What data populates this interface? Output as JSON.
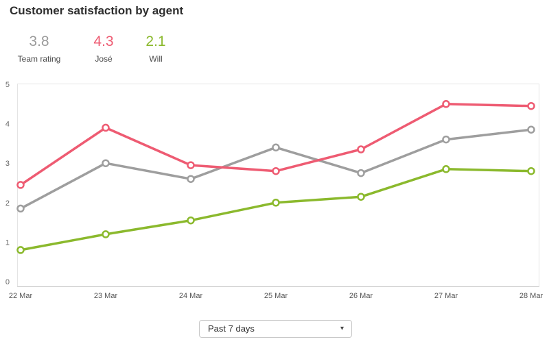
{
  "header": {
    "title": "Customer satisfaction by agent"
  },
  "stats": [
    {
      "value": "3.8",
      "label": "Team rating",
      "color": "#9b9b9b"
    },
    {
      "value": "4.3",
      "label": "José",
      "color": "#ee5b72"
    },
    {
      "value": "2.1",
      "label": "Will",
      "color": "#8bb92d"
    }
  ],
  "filter": {
    "selected": "Past 7 days",
    "caret_icon": "▾"
  },
  "chart_data": {
    "type": "line",
    "title": "Customer satisfaction by agent",
    "categories": [
      "22 Mar",
      "23 Mar",
      "24 Mar",
      "25 Mar",
      "26 Mar",
      "27 Mar",
      "28 Mar"
    ],
    "series": [
      {
        "name": "Team rating",
        "color": "#9e9e9e",
        "values": [
          1.85,
          3.0,
          2.6,
          3.4,
          2.75,
          3.6,
          3.85
        ]
      },
      {
        "name": "Will",
        "color": "#8bb92d",
        "values": [
          0.8,
          1.2,
          1.55,
          2.0,
          2.15,
          2.85,
          2.8
        ]
      },
      {
        "name": "José",
        "color": "#ee5b72",
        "values": [
          2.45,
          3.9,
          2.95,
          2.8,
          3.35,
          4.5,
          4.45
        ]
      }
    ],
    "xlabel": "",
    "ylabel": "",
    "ylim": [
      0,
      5
    ],
    "yticks": [
      0,
      1,
      2,
      3,
      4,
      5
    ],
    "grid": false,
    "legend": "none",
    "marker": "open-circle",
    "axis_colors": {
      "border": "#e4e4e4",
      "axis_line": "#c8c8c8",
      "ytick_text": "#666666",
      "xtick_text": "#555555"
    }
  }
}
